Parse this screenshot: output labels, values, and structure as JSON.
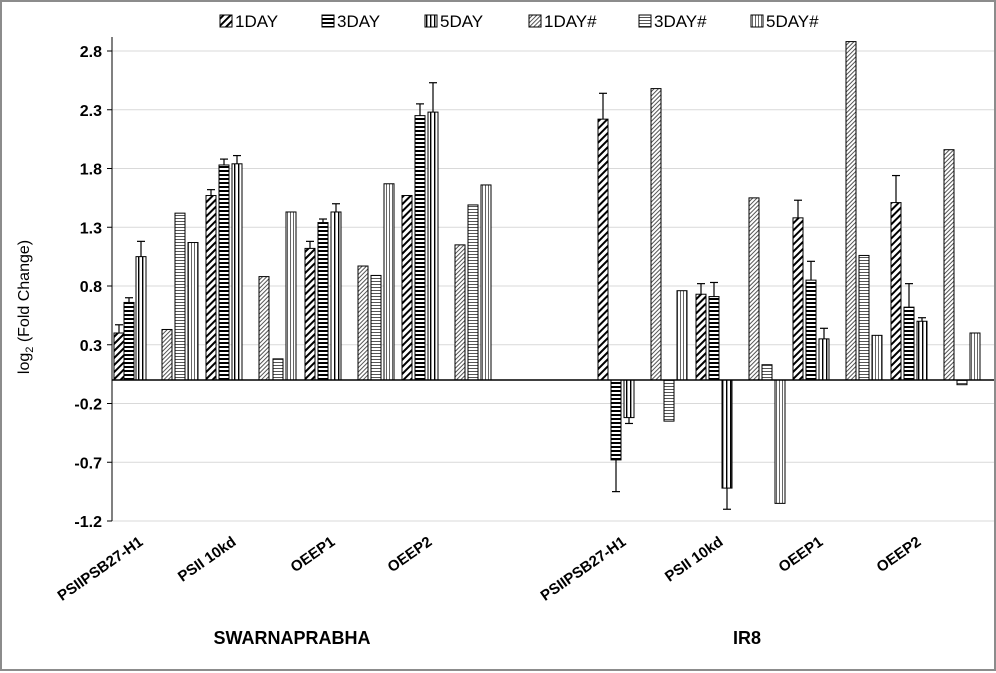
{
  "chart_data": {
    "type": "bar",
    "title": "",
    "ylabel_main": "log",
    "ylabel_sub": "2",
    "ylabel_rest": " (Fold Change)",
    "ylim": [
      -1.2,
      3.0
    ],
    "yticks": [
      "2.8",
      "2.3",
      "1.8",
      "1.3",
      "0.8",
      "0.3",
      "-0.2",
      "-0.7",
      "-1.2"
    ],
    "ytick_values": [
      2.8,
      2.3,
      1.8,
      1.3,
      0.8,
      0.3,
      -0.2,
      -0.7,
      -1.2
    ],
    "groups": [
      {
        "label": "SWARNAPRABHA",
        "categories": [
          "PSIIPSB27-H1",
          "PSII 10kd",
          "OEEP1",
          "OEEP2"
        ]
      },
      {
        "label": "IR8",
        "categories": [
          "PSIIPSB27-H1",
          "PSII 10kd",
          "OEEP1",
          "OEEP2"
        ]
      }
    ],
    "series": [
      {
        "name": "1DAY",
        "pattern": "diag",
        "values": [
          0.4,
          1.57,
          1.12,
          1.57,
          2.22,
          0.73,
          1.38,
          1.51
        ],
        "errors": [
          0.07,
          0.05,
          0.06,
          0.0,
          0.22,
          0.09,
          0.15,
          0.23
        ]
      },
      {
        "name": "3DAY",
        "pattern": "horiz",
        "values": [
          0.66,
          1.83,
          1.34,
          2.25,
          -0.68,
          0.71,
          0.85,
          0.62
        ],
        "errors": [
          0.04,
          0.05,
          0.03,
          0.1,
          0.27,
          0.12,
          0.16,
          0.2
        ]
      },
      {
        "name": "5DAY",
        "pattern": "vert",
        "values": [
          1.05,
          1.84,
          1.43,
          2.28,
          -0.32,
          -0.92,
          0.35,
          0.5
        ],
        "errors": [
          0.13,
          0.07,
          0.07,
          0.25,
          0.05,
          0.18,
          0.09,
          0.03
        ]
      },
      {
        "name": "1DAY#",
        "pattern": "diagfine",
        "values": [
          0.43,
          0.88,
          0.97,
          1.15,
          2.48,
          1.55,
          2.88,
          1.96
        ],
        "errors": [
          0,
          0,
          0,
          0,
          0,
          0,
          0,
          0
        ]
      },
      {
        "name": "3DAY#",
        "pattern": "horizfine",
        "values": [
          1.42,
          0.18,
          0.89,
          1.49,
          -0.35,
          0.13,
          1.06,
          -0.04
        ],
        "errors": [
          0,
          0,
          0,
          0,
          0,
          0,
          0,
          0
        ]
      },
      {
        "name": "5DAY#",
        "pattern": "vertfine",
        "values": [
          1.17,
          1.43,
          1.67,
          1.66,
          0.76,
          -1.05,
          0.38,
          0.4
        ],
        "errors": [
          0,
          0,
          0,
          0,
          0,
          0,
          0,
          0
        ]
      }
    ]
  }
}
